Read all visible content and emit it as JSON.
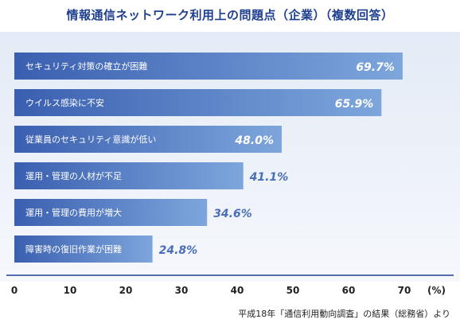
{
  "title": "情報通信ネットワーク利用上の問題点（企業）（複数回答）",
  "source": "平成18年「通信利用動向調査」の結果（総務省）より",
  "chart_data": {
    "type": "bar",
    "orientation": "horizontal",
    "categories": [
      "セキュリティ対策の確立が困難",
      "ウイルス感染に不安",
      "従業員のセキュリティ意識が低い",
      "運用・管理の人材が不足",
      "運用・管理の費用が増大",
      "障害時の復旧作業が困難"
    ],
    "values": [
      69.7,
      65.9,
      48.0,
      41.1,
      34.6,
      24.8
    ],
    "value_labels": [
      "69.7%",
      "65.9%",
      "48.0%",
      "41.1%",
      "34.6%",
      "24.8%"
    ],
    "xlim": [
      0,
      70
    ],
    "ticks": [
      "0",
      "10",
      "20",
      "30",
      "40",
      "50",
      "60",
      "70"
    ],
    "xlabel": "(%)",
    "bar_color_start": "#3a5fb0",
    "bar_color_end": "#7ea6dc",
    "label_color_inside": "#ffffff",
    "label_color_outside": "#4a6fb8"
  }
}
